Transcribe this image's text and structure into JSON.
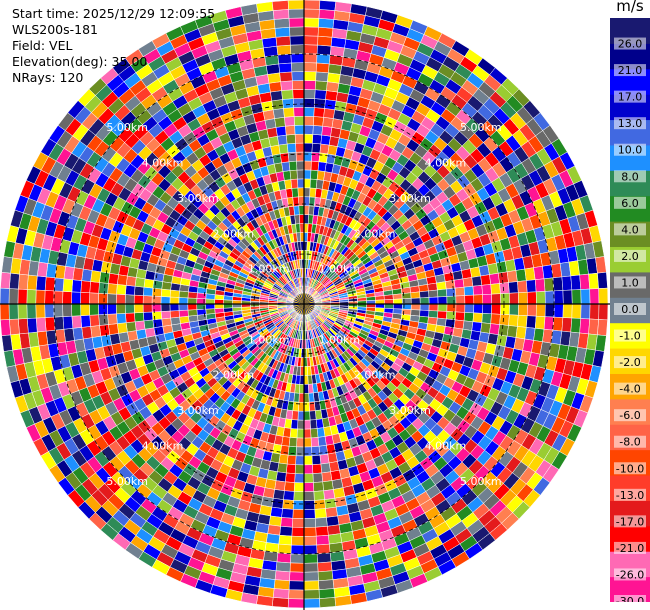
{
  "info": {
    "start_time": "Start time: 2025/12/29 12:09:55",
    "station": "WLS200s-181",
    "field": "Field: VEL",
    "elevation": "Elevation(deg): 35.00",
    "nrays": "NRays: 120"
  },
  "chart_data": {
    "type": "heatmap",
    "projection": "polar PPI scan",
    "field": "VEL",
    "elevation_deg": 35.0,
    "n_rays": 120,
    "range_rings_km": [
      1.0,
      2.0,
      3.0,
      4.0,
      5.0
    ],
    "ring_labels": [
      "1.00km",
      "2.00km",
      "3.00km",
      "4.00km",
      "5.00km"
    ],
    "colorbar": {
      "unit": "m/s",
      "ticks": [
        "26.0",
        "21.0",
        "17.0",
        "13.0",
        "10.0",
        "8.0",
        "6.0",
        "4.0",
        "2.0",
        "1.0",
        "0.0",
        "-1.0",
        "-2.0",
        "-4.0",
        "-6.0",
        "-8.0",
        "-10.0",
        "-13.0",
        "-17.0",
        "-21.0",
        "-26.0",
        "-30.0"
      ],
      "colors": [
        "#ff1493",
        "#ff69b4",
        "#ff0000",
        "#e41a1c",
        "#ff3c2a",
        "#ff4500",
        "#ff6347",
        "#ff7f50",
        "#ffa500",
        "#ffd700",
        "#ffff00",
        "#708090",
        "#696969",
        "#9acd32",
        "#6b8e23",
        "#228b22",
        "#2e8b57",
        "#1e90ff",
        "#4169e1",
        "#0000cd",
        "#0000ff",
        "#00008b",
        "#191970"
      ]
    }
  }
}
